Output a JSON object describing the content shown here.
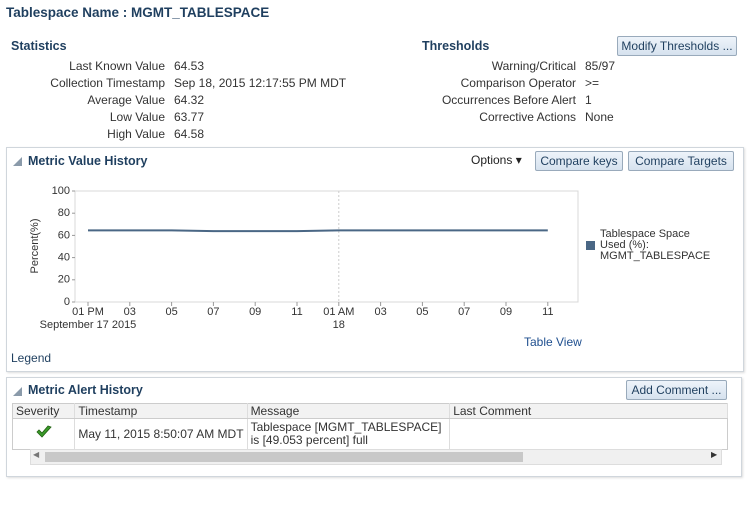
{
  "header": {
    "title": "Tablespace Name : MGMT_TABLESPACE"
  },
  "statistics": {
    "title": "Statistics",
    "rows": [
      [
        "Last Known Value",
        "64.53"
      ],
      [
        "Collection Timestamp",
        "Sep 18, 2015 12:17:55 PM MDT"
      ],
      [
        "Average Value",
        "64.32"
      ],
      [
        "Low Value",
        "63.77"
      ],
      [
        "High Value",
        "64.58"
      ]
    ]
  },
  "thresholds": {
    "title": "Thresholds",
    "button": "Modify Thresholds ...",
    "rows": [
      [
        "Warning/Critical",
        "85/97"
      ],
      [
        "Comparison Operator",
        ">="
      ],
      [
        "Occurrences Before Alert",
        "1"
      ],
      [
        "Corrective Actions",
        "None"
      ]
    ]
  },
  "metric_history": {
    "title": "Metric Value History",
    "options": "Options",
    "buttons": [
      "Compare keys",
      "Compare Targets"
    ],
    "table_view": "Table View",
    "legend_link": "Legend"
  },
  "chart_data": {
    "type": "line",
    "y_label": "Percent(%)",
    "categories": [
      "01 PM",
      "03",
      "05",
      "07",
      "09",
      "11",
      "01 AM",
      "03",
      "05",
      "07",
      "09",
      "11"
    ],
    "date_labels": [
      "September 17 2015",
      null,
      null,
      null,
      null,
      null,
      "18",
      null,
      null,
      null,
      null,
      null
    ],
    "series": [
      {
        "name": "Tablespace Space Used (%): MGMT_TABLESPACE",
        "color": "#4a6785",
        "values": [
          64.5,
          64.5,
          64.5,
          63.8,
          63.8,
          63.8,
          64.5,
          64.5,
          64.5,
          64.5,
          64.5,
          64.5
        ]
      }
    ],
    "ylim": [
      0,
      100
    ],
    "yticks": [
      0,
      20,
      40,
      60,
      80,
      100
    ],
    "grid": false
  },
  "alert_history": {
    "title": "Metric Alert History",
    "button": "Add Comment ...",
    "columns": [
      "Severity",
      "Timestamp",
      "Message",
      "Last Comment"
    ],
    "rows": [
      {
        "timestamp": "May 11, 2015 8:50:07 AM MDT",
        "message": "Tablespace [MGMT_TABLESPACE] is [49.053 percent] full"
      }
    ]
  }
}
